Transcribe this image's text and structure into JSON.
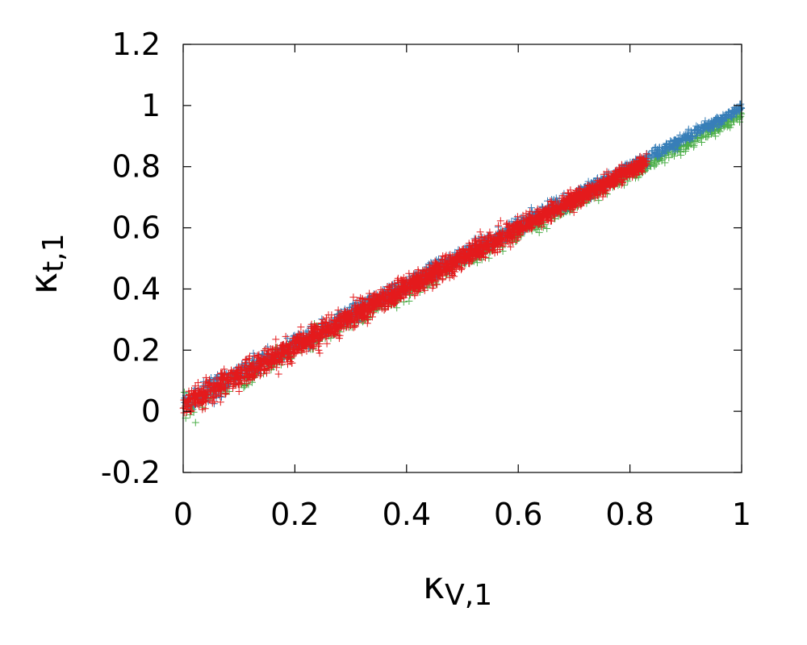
{
  "chart_data": {
    "type": "scatter",
    "marker": "plus",
    "xlabel": {
      "main": "κ",
      "sub": "V,1"
    },
    "ylabel": {
      "main": "κ",
      "sub": "t,1"
    },
    "xlim": [
      0,
      1
    ],
    "ylim": [
      -0.2,
      1.2
    ],
    "xticks": [
      "0",
      "0.2",
      "0.4",
      "0.6",
      "0.8",
      "1"
    ],
    "xtick_values": [
      0,
      0.2,
      0.4,
      0.6,
      0.8,
      1
    ],
    "yticks": [
      "-0.2",
      "0",
      "0.2",
      "0.4",
      "0.6",
      "0.8",
      "1",
      "1.2"
    ],
    "ytick_values": [
      -0.2,
      0,
      0.2,
      0.4,
      0.6,
      0.8,
      1,
      1.2
    ],
    "grid": false,
    "legend": "none",
    "series": [
      {
        "color": "#4daf4a",
        "x_range": [
          0,
          1.0
        ],
        "trend_slope": 0.96,
        "trend_intercept": 0.02,
        "spread": 0.035,
        "bias": -0.012,
        "count": 900
      },
      {
        "color": "#377eb8",
        "x_range": [
          0,
          1.0
        ],
        "trend_slope": 0.96,
        "trend_intercept": 0.02,
        "spread": 0.033,
        "bias": 0.01,
        "count": 1400
      },
      {
        "color": "#e41a1c",
        "x_range": [
          0,
          0.83
        ],
        "trend_slope": 0.96,
        "trend_intercept": 0.02,
        "spread": 0.04,
        "bias": 0.0,
        "count": 2600
      }
    ]
  }
}
